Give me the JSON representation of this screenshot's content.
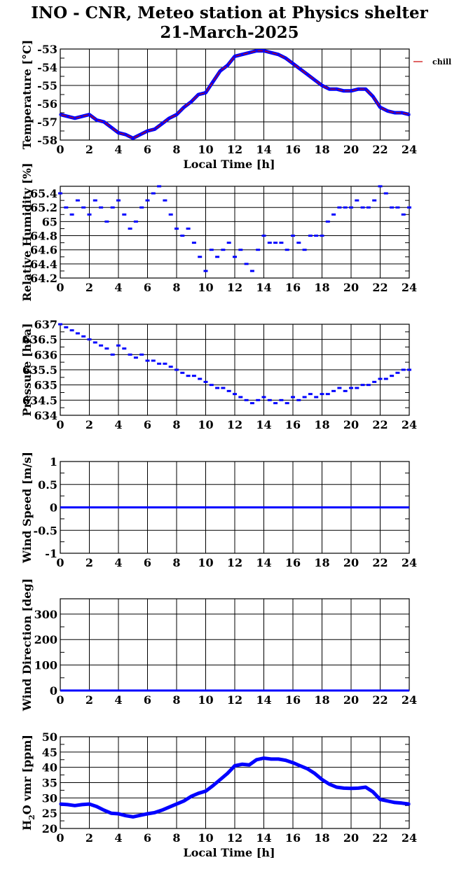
{
  "title": "INO - CNR, Meteo station at Physics shelter",
  "subtitle": "21-March-2025",
  "chart_data": [
    {
      "id": "temperature",
      "type": "line",
      "ylabel": "Temperature [°C]",
      "xlabel": "Local Time [h]",
      "xlim": [
        0,
        24
      ],
      "ylim": [
        -58,
        -53
      ],
      "xticks": [
        "0",
        "2",
        "4",
        "6",
        "8",
        "10",
        "12",
        "14",
        "16",
        "18",
        "20",
        "22",
        "24"
      ],
      "yticks": [
        "-58",
        "-57",
        "-56",
        "-55",
        "-54",
        "-53"
      ],
      "grid": true,
      "legend": "right",
      "series": [
        {
          "name": "chill",
          "color": "#cc0000",
          "marker_color": "#0000ff",
          "x": [
            0,
            0.5,
            1,
            1.5,
            2,
            2.5,
            3,
            3.5,
            4,
            4.5,
            5,
            5.5,
            6,
            6.5,
            7,
            7.5,
            8,
            8.5,
            9,
            9.5,
            10,
            10.5,
            11,
            11.5,
            12,
            12.5,
            13,
            13.5,
            14,
            14.5,
            15,
            15.5,
            16,
            16.5,
            17,
            17.5,
            18,
            18.5,
            19,
            19.5,
            20,
            20.5,
            21,
            21.5,
            22,
            22.5,
            23,
            23.5,
            24
          ],
          "y": [
            -56.6,
            -56.7,
            -56.8,
            -56.7,
            -56.6,
            -56.9,
            -57.0,
            -57.3,
            -57.6,
            -57.7,
            -57.9,
            -57.7,
            -57.5,
            -57.4,
            -57.1,
            -56.8,
            -56.6,
            -56.2,
            -55.9,
            -55.5,
            -55.4,
            -54.8,
            -54.2,
            -53.9,
            -53.4,
            -53.3,
            -53.2,
            -53.1,
            -53.1,
            -53.2,
            -53.3,
            -53.5,
            -53.8,
            -54.1,
            -54.4,
            -54.7,
            -55.0,
            -55.2,
            -55.2,
            -55.3,
            -55.3,
            -55.2,
            -55.2,
            -55.6,
            -56.2,
            -56.4,
            -56.5,
            -56.5,
            -56.6
          ]
        }
      ]
    },
    {
      "id": "humidity",
      "type": "scatter",
      "ylabel": "Relative Humidity [%]",
      "xlim": [
        0,
        24
      ],
      "ylim": [
        64.2,
        65.5
      ],
      "xticks": [
        "0",
        "2",
        "4",
        "6",
        "8",
        "10",
        "12",
        "14",
        "16",
        "18",
        "20",
        "22",
        "24"
      ],
      "yticks": [
        "64.2",
        "64.4",
        "64.6",
        "64.8",
        "65",
        "65.2",
        "65.4"
      ],
      "ytick_values": [
        64.2,
        64.4,
        64.6,
        64.8,
        65,
        65.2,
        65.4
      ],
      "grid": true,
      "series": [
        {
          "color": "#0000ff",
          "x": [
            0,
            0.4,
            0.8,
            1.2,
            1.6,
            2.0,
            2.4,
            2.8,
            3.2,
            3.6,
            4.0,
            4.4,
            4.8,
            5.2,
            5.6,
            6.0,
            6.4,
            6.8,
            7.2,
            7.6,
            8.0,
            8.4,
            8.8,
            9.2,
            9.6,
            10.0,
            10.4,
            10.8,
            11.2,
            11.6,
            12.0,
            12.4,
            12.8,
            13.2,
            13.6,
            14.0,
            14.4,
            14.8,
            15.2,
            15.6,
            16.0,
            16.4,
            16.8,
            17.2,
            17.6,
            18.0,
            18.4,
            18.8,
            19.2,
            19.6,
            20.0,
            20.4,
            20.8,
            21.2,
            21.6,
            22.0,
            22.4,
            22.8,
            23.2,
            23.6,
            24.0
          ],
          "y": [
            65.4,
            65.2,
            65.1,
            65.3,
            65.2,
            65.1,
            65.3,
            65.2,
            65.0,
            65.2,
            65.3,
            65.1,
            64.9,
            65.0,
            65.2,
            65.3,
            65.4,
            65.5,
            65.3,
            65.1,
            64.9,
            64.8,
            64.9,
            64.7,
            64.5,
            64.3,
            64.6,
            64.5,
            64.6,
            64.7,
            64.5,
            64.6,
            64.4,
            64.3,
            64.6,
            64.8,
            64.7,
            64.7,
            64.7,
            64.6,
            64.8,
            64.7,
            64.6,
            64.8,
            64.8,
            64.8,
            65.0,
            65.1,
            65.2,
            65.2,
            65.2,
            65.3,
            65.2,
            65.2,
            65.3,
            65.5,
            65.4,
            65.2,
            65.2,
            65.1,
            65.2
          ]
        }
      ]
    },
    {
      "id": "pressure",
      "type": "scatter",
      "ylabel": "Pressure [hPa]",
      "xlim": [
        0,
        24
      ],
      "ylim": [
        634,
        637
      ],
      "xticks": [
        "0",
        "2",
        "4",
        "6",
        "8",
        "10",
        "12",
        "14",
        "16",
        "18",
        "20",
        "22",
        "24"
      ],
      "yticks": [
        "634",
        "634.5",
        "635",
        "635.5",
        "636",
        "636.5",
        "637"
      ],
      "ytick_values": [
        634,
        634.5,
        635,
        635.5,
        636,
        636.5,
        637
      ],
      "grid": true,
      "series": [
        {
          "color": "#0000ff",
          "x": [
            0,
            0.4,
            0.8,
            1.2,
            1.6,
            2.0,
            2.4,
            2.8,
            3.2,
            3.6,
            4.0,
            4.4,
            4.8,
            5.2,
            5.6,
            6.0,
            6.4,
            6.8,
            7.2,
            7.6,
            8.0,
            8.4,
            8.8,
            9.2,
            9.6,
            10.0,
            10.4,
            10.8,
            11.2,
            11.6,
            12.0,
            12.4,
            12.8,
            13.2,
            13.6,
            14.0,
            14.4,
            14.8,
            15.2,
            15.6,
            16.0,
            16.4,
            16.8,
            17.2,
            17.6,
            18.0,
            18.4,
            18.8,
            19.2,
            19.6,
            20.0,
            20.4,
            20.8,
            21.2,
            21.6,
            22.0,
            22.4,
            22.8,
            23.2,
            23.6,
            24.0
          ],
          "y": [
            637.0,
            636.9,
            636.8,
            636.7,
            636.6,
            636.5,
            636.4,
            636.3,
            636.2,
            636.0,
            636.3,
            636.2,
            636.0,
            635.9,
            636.0,
            635.8,
            635.8,
            635.7,
            635.7,
            635.6,
            635.5,
            635.4,
            635.3,
            635.3,
            635.2,
            635.1,
            635.0,
            634.9,
            634.9,
            634.8,
            634.7,
            634.6,
            634.5,
            634.4,
            634.5,
            634.6,
            634.5,
            634.4,
            634.5,
            634.4,
            634.6,
            634.5,
            634.6,
            634.7,
            634.6,
            634.7,
            634.7,
            634.8,
            634.9,
            634.8,
            634.9,
            634.9,
            635.0,
            635.0,
            635.1,
            635.2,
            635.2,
            635.3,
            635.4,
            635.5,
            635.5
          ]
        }
      ]
    },
    {
      "id": "windspeed",
      "type": "line",
      "ylabel": "Wind Speed [m/s]",
      "xlim": [
        0,
        24
      ],
      "ylim": [
        -1,
        1
      ],
      "xticks": [
        "0",
        "2",
        "4",
        "6",
        "8",
        "10",
        "12",
        "14",
        "16",
        "18",
        "20",
        "22",
        "24"
      ],
      "yticks": [
        "-1",
        "-0.5",
        "0",
        "0.5",
        "1"
      ],
      "ytick_values": [
        -1,
        -0.5,
        0,
        0.5,
        1
      ],
      "grid": true,
      "series": [
        {
          "color": "#0000ff",
          "x": [
            0,
            24
          ],
          "y": [
            0,
            0
          ]
        }
      ]
    },
    {
      "id": "winddir",
      "type": "line",
      "ylabel": "Wind Direction [deg]",
      "xlim": [
        0,
        24
      ],
      "ylim": [
        0,
        360
      ],
      "xticks": [
        "0",
        "2",
        "4",
        "6",
        "8",
        "10",
        "12",
        "14",
        "16",
        "18",
        "20",
        "22",
        "24"
      ],
      "yticks": [
        "0",
        "100",
        "200",
        "300"
      ],
      "ytick_values": [
        0,
        100,
        200,
        300
      ],
      "grid": true,
      "series": [
        {
          "color": "#0000ff",
          "x": [
            0,
            24
          ],
          "y": [
            0,
            0
          ]
        }
      ]
    },
    {
      "id": "h2o",
      "type": "line",
      "ylabel": "H2O vmr [ppm]",
      "xlabel": "Local Time [h]",
      "xlim": [
        0,
        24
      ],
      "ylim": [
        20,
        50
      ],
      "xticks": [
        "0",
        "2",
        "4",
        "6",
        "8",
        "10",
        "12",
        "14",
        "16",
        "18",
        "20",
        "22",
        "24"
      ],
      "yticks": [
        "20",
        "25",
        "30",
        "35",
        "40",
        "45",
        "50"
      ],
      "ytick_values": [
        20,
        25,
        30,
        35,
        40,
        45,
        50
      ],
      "grid": true,
      "series": [
        {
          "color": "#0000ff",
          "x": [
            0,
            0.5,
            1,
            1.5,
            2,
            2.5,
            3,
            3.5,
            4,
            4.5,
            5,
            5.5,
            6,
            6.5,
            7,
            7.5,
            8,
            8.5,
            9,
            9.5,
            10,
            10.5,
            11,
            11.5,
            12,
            12.5,
            13,
            13.5,
            14,
            14.5,
            15,
            15.5,
            16,
            16.5,
            17,
            17.5,
            18,
            18.5,
            19,
            19.5,
            20,
            20.5,
            21,
            21.5,
            22,
            22.5,
            23,
            23.5,
            24
          ],
          "y": [
            28,
            27.8,
            27.5,
            27.8,
            28,
            27.2,
            26,
            25,
            24.8,
            24.2,
            23.8,
            24.3,
            24.8,
            25.2,
            26,
            27,
            28,
            29,
            30.5,
            31.5,
            32.2,
            34,
            36,
            38,
            40.5,
            41,
            40.8,
            42.5,
            43,
            42.7,
            42.7,
            42.3,
            41.5,
            40.5,
            39.5,
            38,
            36,
            34.5,
            33.5,
            33.2,
            33.1,
            33.2,
            33.5,
            32,
            29.5,
            29,
            28.5,
            28.3,
            28
          ]
        }
      ]
    }
  ]
}
